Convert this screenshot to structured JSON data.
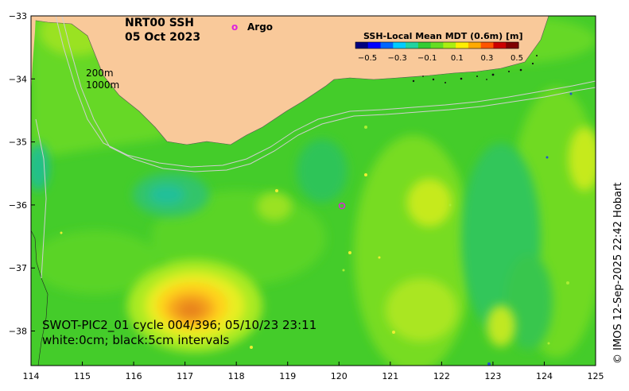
{
  "title": {
    "product": "NRT00 SSH",
    "date": "05 Oct 2023"
  },
  "legend": {
    "argo_symbol": "o",
    "argo_label": "Argo",
    "contours": [
      "200m",
      "1000m"
    ]
  },
  "colorbar": {
    "title": "SSH-Local Mean MDT (0.6m) [m]",
    "ticks": [
      "−0.5",
      "−0.3",
      "−0.1",
      "0.1",
      "0.3",
      "0.5"
    ],
    "colors": [
      "#00007f",
      "#0000ff",
      "#0066ff",
      "#00ccff",
      "#22d3a0",
      "#33cc33",
      "#66dd22",
      "#aaee11",
      "#ffee00",
      "#ffaa00",
      "#ff5500",
      "#cc0000",
      "#7f0000"
    ]
  },
  "annotation": {
    "line1": "SWOT-PIC2_01 cycle 004/396; 05/10/23 23:11",
    "line2": "white:0cm; black:5cm intervals"
  },
  "credit": "© IMOS 12-Sep-2025 22:42 Hobart",
  "axes": {
    "x_ticks": [
      "114",
      "115",
      "116",
      "117",
      "118",
      "119",
      "120",
      "121",
      "122",
      "123",
      "124",
      "125"
    ],
    "y_ticks": [
      "−33",
      "−34",
      "−35",
      "−36",
      "−37",
      "−38"
    ]
  },
  "colors": {
    "land": "#f9c99a",
    "base_green": "#44cc2a",
    "light_green": "#88e022",
    "yellow": "#ddee22",
    "teal": "#22c48a",
    "orange": "#f0a020"
  }
}
